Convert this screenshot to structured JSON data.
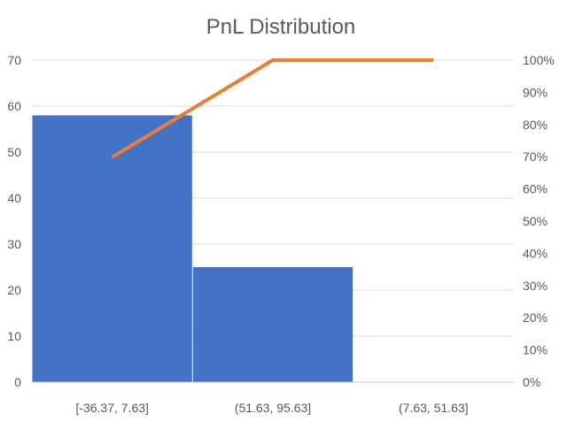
{
  "chart_data": {
    "type": "bar",
    "title": "PnL Distribution",
    "categories": [
      "[-36.37, 7.63]",
      "(51.63, 95.63]",
      "(7.63, 51.63]"
    ],
    "series": [
      {
        "type": "bar",
        "values": [
          58,
          25,
          0
        ],
        "color": "#4472C4"
      },
      {
        "type": "line",
        "values": [
          0.6988,
          1.0,
          1.0
        ],
        "axis": "secondary",
        "color": "#ED7D31"
      }
    ],
    "y_ticks": [
      "0",
      "10",
      "20",
      "30",
      "40",
      "50",
      "60",
      "70"
    ],
    "y2_ticks": [
      "0%",
      "10%",
      "20%",
      "30%",
      "40%",
      "50%",
      "60%",
      "70%",
      "80%",
      "90%",
      "100%"
    ],
    "ylim": [
      0,
      70
    ],
    "y2lim": [
      0,
      1
    ],
    "grid": true,
    "legend": "none"
  }
}
